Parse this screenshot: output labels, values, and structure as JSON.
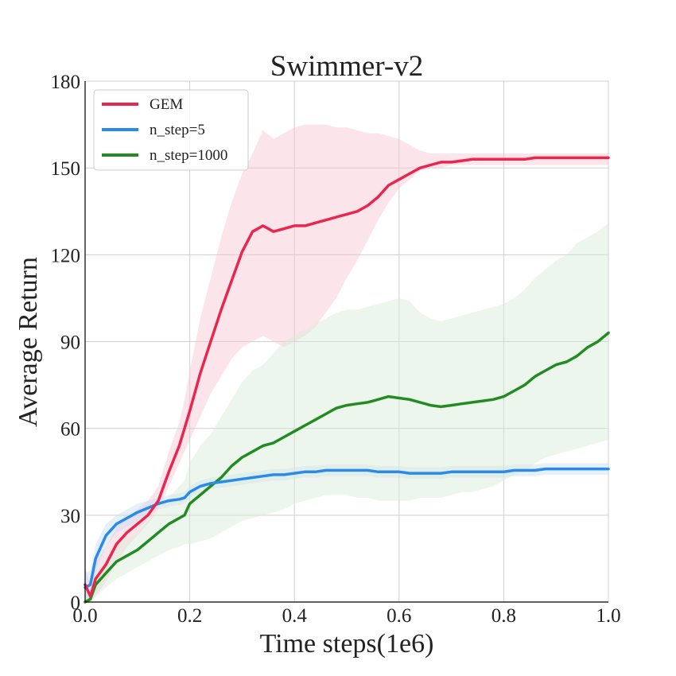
{
  "chart_data": {
    "type": "line",
    "title": "Swimmer-v2",
    "xlabel": "Time steps(1e6)",
    "ylabel": "Average Return",
    "xlim": [
      0,
      1.0
    ],
    "ylim": [
      0,
      180
    ],
    "xticks": [
      "0.0",
      "0.2",
      "0.4",
      "0.6",
      "0.8",
      "1.0"
    ],
    "yticks": [
      "0",
      "30",
      "60",
      "90",
      "120",
      "150",
      "180"
    ],
    "grid": true,
    "legend_position": "top-left",
    "series": [
      {
        "name": "GEM",
        "color": "#e8274f",
        "band_color": "#f6c4d0",
        "x": [
          0.0,
          0.01,
          0.02,
          0.04,
          0.06,
          0.08,
          0.1,
          0.12,
          0.14,
          0.16,
          0.18,
          0.19,
          0.2,
          0.22,
          0.24,
          0.26,
          0.28,
          0.3,
          0.32,
          0.34,
          0.36,
          0.38,
          0.4,
          0.42,
          0.44,
          0.46,
          0.48,
          0.5,
          0.52,
          0.54,
          0.56,
          0.58,
          0.6,
          0.62,
          0.64,
          0.66,
          0.68,
          0.7,
          0.72,
          0.74,
          0.76,
          0.78,
          0.8,
          0.82,
          0.84,
          0.86,
          0.88,
          0.9,
          0.92,
          0.94,
          0.96,
          0.98,
          1.0
        ],
        "y": [
          6,
          2,
          8,
          13,
          20,
          24,
          27,
          30,
          35,
          45,
          54,
          60,
          66,
          79,
          90,
          101,
          111,
          121,
          128,
          130,
          128,
          129,
          130,
          130,
          131,
          132,
          133,
          134,
          135,
          137,
          140,
          144,
          146,
          148,
          150,
          151,
          152,
          152,
          152.5,
          153,
          153,
          153,
          153,
          153,
          153,
          153.5,
          153.5,
          153.5,
          153.5,
          153.5,
          153.5,
          153.5,
          153.5
        ],
        "lower": [
          0,
          0,
          2,
          7,
          14,
          19,
          23,
          27,
          32,
          40,
          48,
          52,
          56,
          64,
          72,
          78,
          84,
          88,
          90,
          92,
          90,
          88,
          90,
          92,
          95,
          100,
          105,
          112,
          118,
          125,
          132,
          138,
          143,
          146,
          149,
          150,
          150,
          151,
          151,
          151,
          151,
          151,
          151,
          151,
          151,
          151,
          151,
          151,
          151,
          151,
          151,
          151,
          151
        ],
        "upper": [
          12,
          6,
          14,
          19,
          26,
          29,
          32,
          35,
          40,
          52,
          62,
          70,
          80,
          98,
          112,
          126,
          138,
          148,
          155,
          163,
          160,
          162,
          164,
          165,
          165,
          165,
          164,
          164,
          163,
          162,
          162,
          161,
          160,
          158,
          156,
          155,
          155,
          155,
          155,
          155,
          155,
          155,
          155,
          155,
          155,
          155,
          155,
          155,
          155,
          155,
          155,
          155,
          155
        ]
      },
      {
        "name": "n_step=5",
        "color": "#2b8ae8",
        "band_color": "#c5def6",
        "x": [
          0.0,
          0.01,
          0.02,
          0.04,
          0.06,
          0.08,
          0.1,
          0.12,
          0.14,
          0.16,
          0.18,
          0.19,
          0.2,
          0.22,
          0.24,
          0.26,
          0.28,
          0.3,
          0.32,
          0.34,
          0.36,
          0.38,
          0.4,
          0.42,
          0.44,
          0.46,
          0.48,
          0.5,
          0.52,
          0.54,
          0.56,
          0.58,
          0.6,
          0.62,
          0.64,
          0.66,
          0.68,
          0.7,
          0.72,
          0.74,
          0.76,
          0.78,
          0.8,
          0.82,
          0.84,
          0.86,
          0.88,
          0.9,
          0.92,
          0.94,
          0.96,
          0.98,
          1.0
        ],
        "y": [
          5,
          6,
          15,
          23,
          27,
          29,
          31,
          32.5,
          34,
          35,
          35.5,
          36,
          38,
          40,
          41,
          41.5,
          42,
          42.5,
          43,
          43.5,
          44,
          44,
          44.5,
          45,
          45,
          45.5,
          45.5,
          45.5,
          45.5,
          45.5,
          45,
          45,
          45,
          44.5,
          44.5,
          44.5,
          44.5,
          45,
          45,
          45,
          45,
          45,
          45,
          45.5,
          45.5,
          45.5,
          46,
          46,
          46,
          46,
          46,
          46,
          46
        ],
        "lower": [
          0,
          1,
          10,
          19,
          24,
          26,
          28,
          30,
          32,
          33,
          33.5,
          34,
          36,
          38,
          39,
          39.5,
          40,
          40.5,
          41,
          41.5,
          42,
          42,
          42.5,
          43,
          43,
          43.5,
          43.5,
          43.5,
          43.5,
          43.5,
          43,
          43,
          43,
          42.5,
          42.5,
          42.5,
          42.5,
          43,
          43,
          43,
          43,
          43,
          43,
          43.5,
          43.5,
          43.5,
          44,
          44,
          44,
          44,
          44,
          44,
          44
        ],
        "upper": [
          10,
          11,
          20,
          27,
          30,
          32,
          34,
          35,
          36,
          37,
          37.5,
          38,
          40,
          42,
          43,
          43.5,
          44,
          44.5,
          45,
          45.5,
          46,
          46,
          46.5,
          47,
          47,
          47.5,
          47.5,
          47.5,
          47.5,
          47.5,
          47,
          47,
          47,
          46.5,
          46.5,
          46.5,
          46.5,
          47,
          47,
          47,
          47,
          47,
          47,
          47.5,
          47.5,
          47.5,
          48,
          48,
          48,
          48,
          48,
          48,
          48
        ]
      },
      {
        "name": "n_step=1000",
        "color": "#228b22",
        "band_color": "#d6ebd6",
        "x": [
          0.0,
          0.01,
          0.02,
          0.04,
          0.06,
          0.08,
          0.1,
          0.12,
          0.14,
          0.16,
          0.18,
          0.19,
          0.2,
          0.22,
          0.24,
          0.26,
          0.28,
          0.3,
          0.32,
          0.34,
          0.36,
          0.38,
          0.4,
          0.42,
          0.44,
          0.46,
          0.48,
          0.5,
          0.52,
          0.54,
          0.56,
          0.58,
          0.6,
          0.62,
          0.64,
          0.66,
          0.68,
          0.7,
          0.72,
          0.74,
          0.76,
          0.78,
          0.8,
          0.82,
          0.84,
          0.86,
          0.88,
          0.9,
          0.92,
          0.94,
          0.96,
          0.98,
          1.0
        ],
        "y": [
          0,
          1,
          6,
          10,
          14,
          16,
          18,
          21,
          24,
          27,
          29,
          30,
          34,
          37,
          40,
          43,
          47,
          50,
          52,
          54,
          55,
          57,
          59,
          61,
          63,
          65,
          67,
          68,
          68.5,
          69,
          70,
          71,
          70.5,
          70,
          69,
          68,
          67.5,
          68,
          68.5,
          69,
          69.5,
          70,
          71,
          73,
          75,
          78,
          80,
          82,
          83,
          85,
          88,
          90,
          93
        ],
        "lower": [
          0,
          0,
          2,
          5,
          8,
          10,
          12,
          14,
          16,
          18,
          19,
          20,
          20,
          21,
          22,
          24,
          26,
          28,
          29,
          30,
          31,
          32,
          34,
          35,
          36,
          37,
          37,
          37,
          36,
          36,
          35,
          35,
          35,
          35,
          36,
          36,
          36,
          37,
          38,
          38,
          39,
          40,
          42,
          44,
          45,
          48,
          50,
          51,
          52,
          53,
          54,
          55,
          56
        ],
        "upper": [
          1,
          2,
          10,
          15,
          20,
          22,
          24,
          28,
          32,
          36,
          40,
          42,
          48,
          54,
          58,
          64,
          70,
          76,
          80,
          82,
          86,
          90,
          92,
          94,
          96,
          98,
          100,
          101,
          101,
          102,
          103,
          104,
          105,
          104,
          100,
          98,
          97,
          98,
          99,
          100,
          101,
          102,
          103,
          105,
          108,
          112,
          115,
          118,
          120,
          124,
          126,
          128,
          131
        ]
      }
    ]
  }
}
